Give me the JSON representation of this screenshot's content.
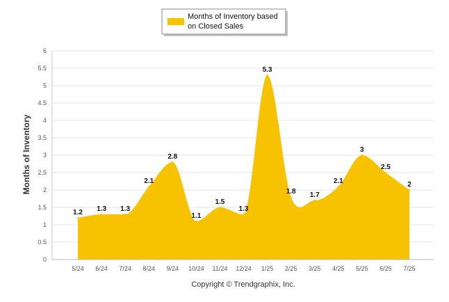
{
  "chart_data": {
    "type": "area",
    "categories": [
      "5/24",
      "6/24",
      "7/24",
      "8/24",
      "9/24",
      "10/24",
      "11/24",
      "12/24",
      "1/25",
      "2/25",
      "3/25",
      "4/25",
      "5/25",
      "6/25",
      "7/25"
    ],
    "series": [
      {
        "name": "Months of Inventory based on Closed Sales",
        "values": [
          1.2,
          1.3,
          1.3,
          2.1,
          2.8,
          1.1,
          1.5,
          1.3,
          5.3,
          1.8,
          1.7,
          2.1,
          3,
          2.5,
          2
        ],
        "labels": [
          "1.2",
          "1.3",
          "1.3",
          "2.1",
          "2.8",
          "1.1",
          "1.5",
          "1.3",
          "5.3",
          "1.8",
          "1.7",
          "2.1",
          "3",
          "2.5",
          "2"
        ],
        "color": "#F7C200"
      }
    ],
    "ylabel": "Months of Inventory",
    "ylim": [
      0,
      6
    ],
    "yticks": [
      "0",
      "0.5",
      "1",
      "1.5",
      "2",
      "2.5",
      "3",
      "3.5",
      "4",
      "4.5",
      "5",
      "5.5",
      "6"
    ],
    "grid": true,
    "legend_position": "top-center",
    "legend_lines": [
      "Months of Inventory based",
      "on Closed Sales"
    ],
    "footer": "Copyright © Trendgraphix, Inc."
  }
}
